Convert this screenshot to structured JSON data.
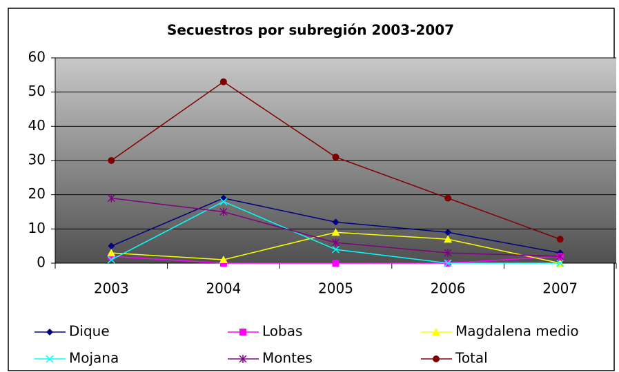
{
  "chart_data": {
    "type": "line",
    "title": "Secuestros por subregión 2003-2007",
    "categories": [
      "2003",
      "2004",
      "2005",
      "2006",
      "2007"
    ],
    "series": [
      {
        "name": "Dique",
        "color": "#000080",
        "marker": "diamond",
        "values": [
          5,
          19,
          12,
          9,
          3
        ]
      },
      {
        "name": "Lobas",
        "color": "#ff00ff",
        "marker": "square",
        "values": [
          2,
          0,
          0,
          0,
          2
        ]
      },
      {
        "name": "Magdalena medio",
        "color": "#ffff00",
        "marker": "triangle",
        "values": [
          3,
          1,
          9,
          7,
          0
        ]
      },
      {
        "name": "Mojana",
        "color": "#00ffff",
        "marker": "x",
        "values": [
          1,
          18,
          4,
          0,
          0
        ]
      },
      {
        "name": "Montes",
        "color": "#800080",
        "marker": "star",
        "values": [
          19,
          15,
          6,
          3,
          2
        ]
      },
      {
        "name": "Total",
        "color": "#800000",
        "marker": "circle",
        "values": [
          30,
          53,
          31,
          19,
          7
        ]
      }
    ],
    "ylim": [
      0,
      60
    ],
    "yticks": [
      0,
      10,
      20,
      30,
      40,
      50,
      60
    ],
    "grid": true,
    "legend": "bottom"
  }
}
